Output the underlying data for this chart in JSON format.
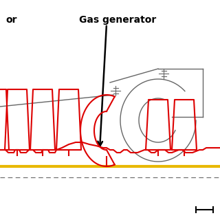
{
  "background_color": "#ffffff",
  "label_compressor": "or",
  "label_gas_gen": "Gas generator",
  "red_color": "#dd0000",
  "gold_color": "#e8b800",
  "gray_color": "#666666",
  "black_color": "#000000"
}
